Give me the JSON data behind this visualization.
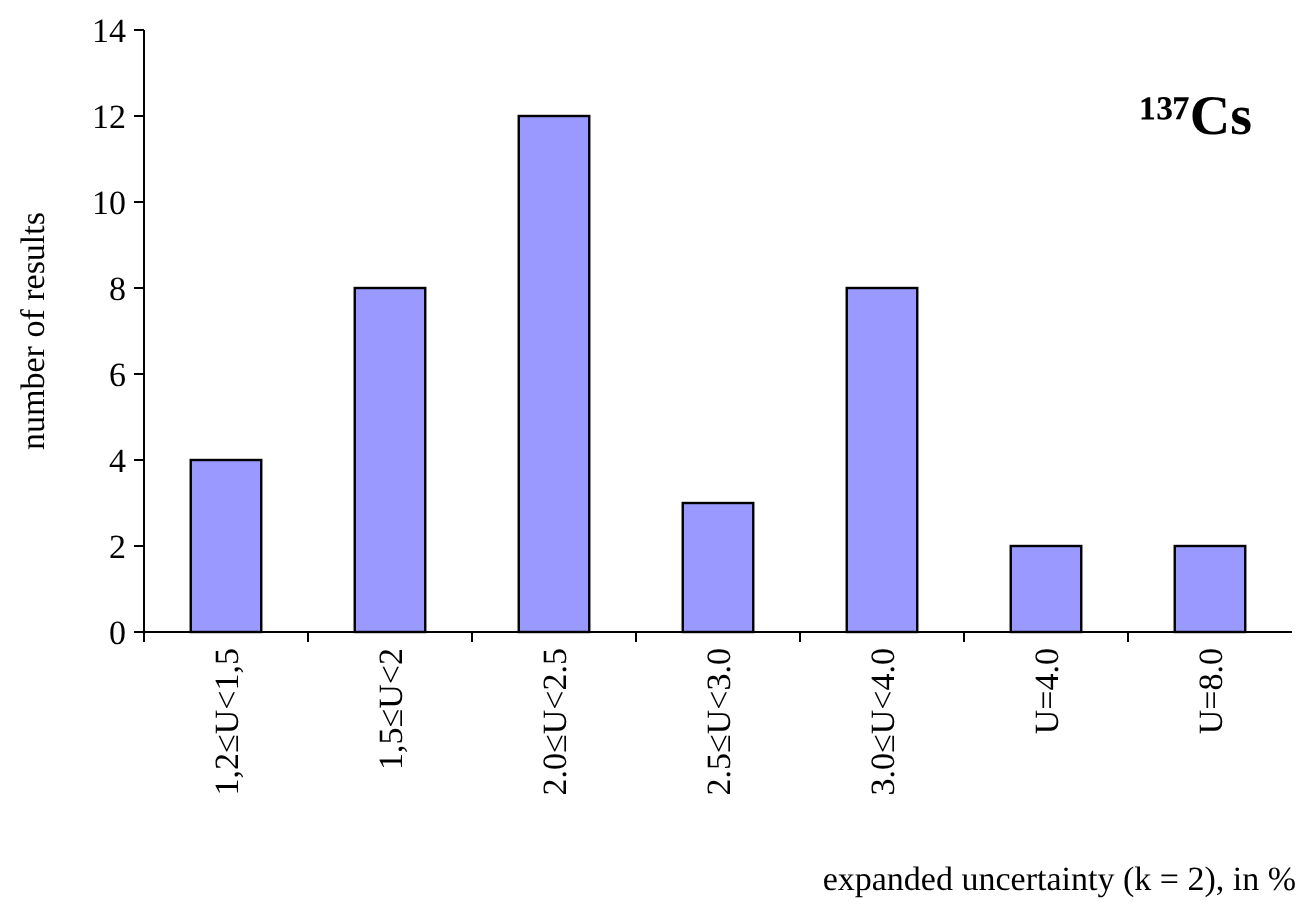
{
  "chart_data": {
    "type": "bar",
    "title": "¹³⁷Cs",
    "xlabel": "expanded uncertainty (k = 2), in %",
    "ylabel": "number of results",
    "categories": [
      "1,2≤U<1,5",
      "1,5≤U<2",
      "2.0≤U<2.5",
      "2.5≤U<3.0",
      "3.0≤U<4.0",
      "U=4.0",
      "U=8.0"
    ],
    "values": [
      4,
      8,
      12,
      3,
      8,
      2,
      2
    ],
    "color": "#9999ff",
    "ylim": [
      0,
      14
    ],
    "yticks": [
      0,
      2,
      4,
      6,
      8,
      10,
      12,
      14
    ],
    "grid": false
  }
}
